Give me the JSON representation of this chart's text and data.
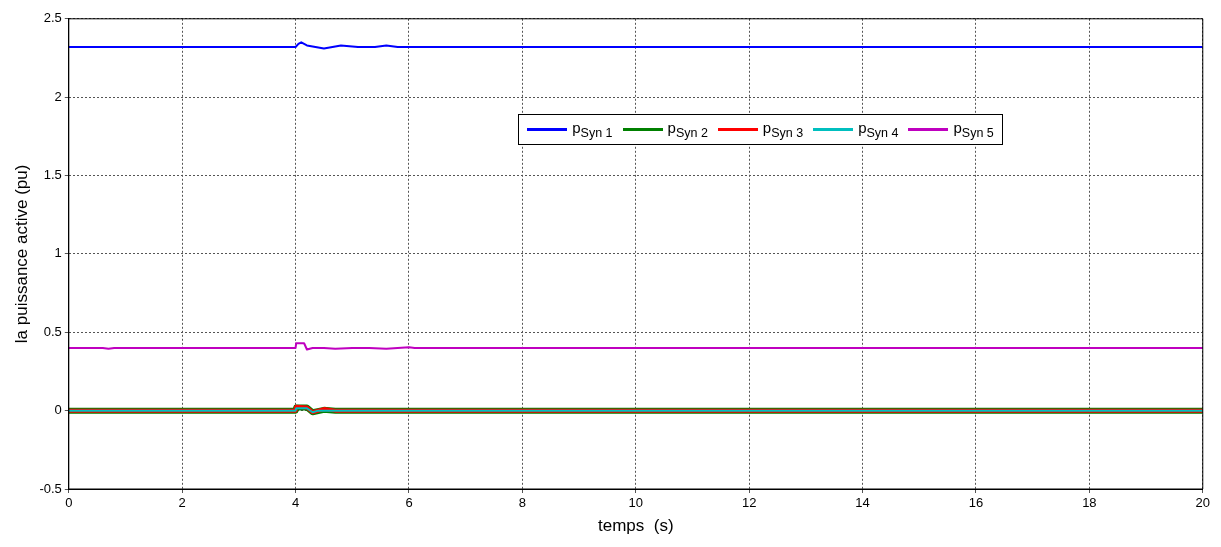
{
  "chart_data": {
    "type": "line",
    "xlabel": "temps  (s)",
    "ylabel": "la puissance active (pu)",
    "xlim": [
      0,
      20
    ],
    "xticks": [
      0,
      2,
      4,
      6,
      8,
      10,
      12,
      14,
      16,
      18,
      20
    ],
    "ylim": [
      -0.5,
      2.5
    ],
    "yticks": [
      -0.5,
      0,
      0.5,
      1,
      1.5,
      2,
      2.5
    ],
    "grid": true,
    "legend": "top right",
    "marker": "none",
    "line_style": "solid",
    "series": [
      {
        "name": "p$_{Syn 1}$",
        "color": "#0000ff",
        "x": [
          0,
          4,
          4.05,
          4.1,
          4.2,
          4.35,
          4.5,
          4.8,
          5.1,
          5.4,
          5.6,
          5.8,
          20
        ],
        "values": [
          2.32,
          2.32,
          2.34,
          2.35,
          2.33,
          2.32,
          2.31,
          2.33,
          2.32,
          2.32,
          2.33,
          2.32,
          2.32
        ]
      },
      {
        "name": "p$_{Syn 2}$",
        "color": "#008000",
        "x": [
          0,
          4,
          4.01,
          4.2,
          4.3,
          4.5,
          4.7,
          20
        ],
        "values": [
          0,
          0,
          0.02,
          0.02,
          -0.01,
          0.005,
          0,
          0
        ]
      },
      {
        "name": "p$_{Syn 3}$",
        "color": "#ff0000",
        "x": [
          0,
          4,
          4.01,
          4.2,
          4.3,
          4.5,
          4.7,
          20
        ],
        "values": [
          0,
          0,
          0.025,
          0.02,
          -0.01,
          0.01,
          0,
          0
        ]
      },
      {
        "name": "p$_{Syn 4}$",
        "color": "#00bfbf",
        "x": [
          0,
          4,
          4.01,
          4.2,
          4.3,
          4.4,
          20
        ],
        "values": [
          0,
          0,
          0.015,
          0.015,
          -0.01,
          0,
          0
        ]
      },
      {
        "name": "p$_{Syn 5}$",
        "color": "#bf00bf",
        "x": [
          0,
          0.6,
          0.7,
          0.8,
          4,
          4.01,
          4.15,
          4.2,
          4.3,
          4.5,
          4.7,
          5,
          5.3,
          5.6,
          5.8,
          6,
          6.1,
          20
        ],
        "values": [
          0.4,
          0.4,
          0.395,
          0.4,
          0.4,
          0.43,
          0.43,
          0.39,
          0.4,
          0.4,
          0.395,
          0.4,
          0.4,
          0.395,
          0.4,
          0.405,
          0.4,
          0.4
        ]
      }
    ]
  }
}
